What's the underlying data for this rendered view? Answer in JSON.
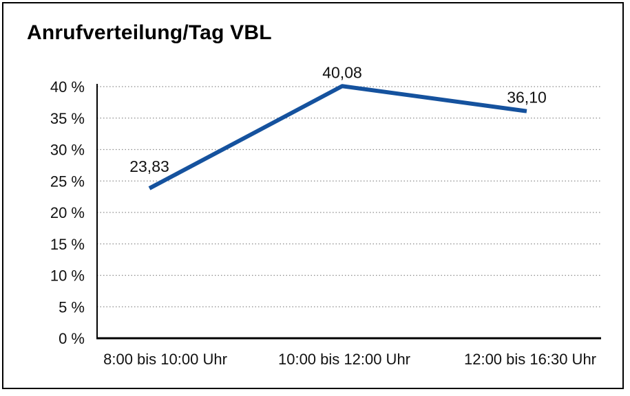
{
  "chart_data": {
    "type": "line",
    "title": "Anrufverteilung/Tag VBL",
    "categories": [
      "8:00 bis 10:00 Uhr",
      "10:00 bis 12:00 Uhr",
      "12:00 bis 16:30 Uhr"
    ],
    "values": [
      23.83,
      40.08,
      36.1
    ],
    "point_labels": [
      "23,83",
      "40,08",
      "36,10"
    ],
    "xlabel": "",
    "ylabel": "",
    "ylim": [
      0,
      40
    ],
    "ytick_step": 5,
    "ytick_labels": [
      "0 %",
      "5 %",
      "10 %",
      "15 %",
      "20 %",
      "25 %",
      "30 %",
      "35 %",
      "40 %"
    ],
    "grid": "horizontal-dotted",
    "legend_position": "none",
    "colors": {
      "line": "#15529e",
      "grid": "#8a8a8a",
      "axis": "#000000",
      "text": "#111111",
      "background": "#ffffff",
      "frame_border": "#000000"
    }
  }
}
